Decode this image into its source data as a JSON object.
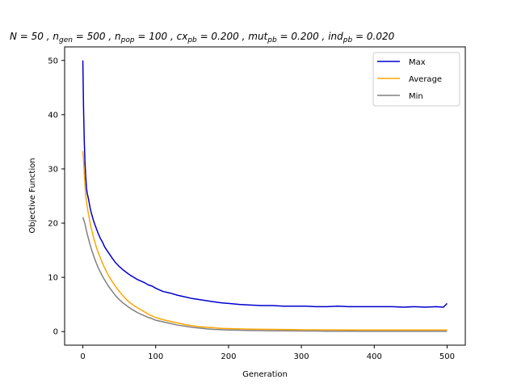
{
  "chart_data": {
    "type": "line",
    "title": "N = 50 , n_gen = 500 , n_pop = 100 , cx_pb = 0.200 , mut_pb = 0.200 , ind_pb = 0.020",
    "title_parts": {
      "n": "N = 50",
      "ngen_base": "n",
      "ngen_sub": "gen",
      "ngen_val": " = 500",
      "npop_base": "n",
      "npop_sub": "pop",
      "npop_val": " = 100",
      "cx_base": "cx",
      "cx_sub": "pb",
      "cx_val": " = 0.200",
      "mut_base": "mut",
      "mut_sub": "pb",
      "mut_val": " = 0.200",
      "ind_base": "ind",
      "ind_sub": "pb",
      "ind_val": " = 0.020",
      "sep": " , "
    },
    "xlabel": "Generation",
    "ylabel": "Objective Function",
    "xlim": [
      -25,
      525
    ],
    "ylim": [
      -2.5,
      52.5
    ],
    "xticks": [
      0,
      100,
      200,
      300,
      400,
      500
    ],
    "yticks": [
      0,
      10,
      20,
      30,
      40,
      50
    ],
    "legend_position": "top-right",
    "grid": false,
    "series": [
      {
        "name": "Max",
        "color": "#0000cd",
        "x": [
          0,
          1,
          2,
          3,
          4,
          5,
          6,
          8,
          10,
          12,
          15,
          18,
          21,
          24,
          27,
          30,
          35,
          40,
          45,
          50,
          55,
          60,
          65,
          70,
          75,
          80,
          85,
          90,
          95,
          100,
          110,
          120,
          130,
          140,
          150,
          160,
          170,
          180,
          190,
          200,
          215,
          230,
          245,
          260,
          275,
          290,
          305,
          320,
          335,
          350,
          365,
          380,
          395,
          410,
          425,
          440,
          455,
          470,
          485,
          495,
          500
        ],
        "values": [
          50.0,
          41.0,
          35.0,
          31.0,
          28.5,
          26.5,
          25.5,
          24.3,
          22.8,
          21.7,
          20.3,
          19.2,
          18.1,
          17.2,
          16.5,
          15.6,
          14.6,
          13.6,
          12.7,
          12.0,
          11.4,
          10.9,
          10.4,
          10.0,
          9.6,
          9.3,
          9.0,
          8.6,
          8.4,
          8.0,
          7.4,
          7.1,
          6.7,
          6.4,
          6.1,
          5.9,
          5.7,
          5.5,
          5.3,
          5.2,
          5.0,
          4.9,
          4.8,
          4.8,
          4.7,
          4.7,
          4.7,
          4.6,
          4.6,
          4.7,
          4.6,
          4.6,
          4.6,
          4.6,
          4.6,
          4.5,
          4.6,
          4.5,
          4.6,
          4.5,
          5.2
        ]
      },
      {
        "name": "Average",
        "color": "#ffa500",
        "x": [
          0,
          1,
          2,
          3,
          4,
          5,
          6,
          8,
          10,
          12,
          15,
          18,
          21,
          24,
          27,
          30,
          35,
          40,
          45,
          50,
          55,
          60,
          65,
          70,
          75,
          80,
          85,
          90,
          95,
          100,
          110,
          120,
          130,
          140,
          150,
          160,
          170,
          180,
          190,
          200,
          215,
          230,
          245,
          260,
          275,
          290,
          305,
          320,
          335,
          350,
          365,
          380,
          395,
          410,
          425,
          440,
          455,
          470,
          485,
          500
        ],
        "values": [
          33.3,
          31.5,
          29.0,
          27.0,
          25.0,
          24.0,
          23.0,
          21.5,
          20.0,
          18.8,
          17.2,
          15.8,
          14.6,
          13.6,
          12.6,
          11.7,
          10.4,
          9.3,
          8.3,
          7.4,
          6.6,
          5.9,
          5.3,
          4.8,
          4.4,
          4.0,
          3.6,
          3.2,
          2.9,
          2.6,
          2.2,
          1.9,
          1.6,
          1.3,
          1.1,
          0.9,
          0.8,
          0.7,
          0.6,
          0.55,
          0.5,
          0.45,
          0.42,
          0.4,
          0.38,
          0.36,
          0.34,
          0.33,
          0.32,
          0.31,
          0.3,
          0.3,
          0.3,
          0.3,
          0.3,
          0.3,
          0.3,
          0.3,
          0.3,
          0.3
        ]
      },
      {
        "name": "Min",
        "color": "#808080",
        "x": [
          0,
          1,
          2,
          3,
          4,
          5,
          6,
          8,
          10,
          12,
          15,
          18,
          21,
          24,
          27,
          30,
          35,
          40,
          45,
          50,
          55,
          60,
          65,
          70,
          75,
          80,
          85,
          90,
          95,
          100,
          110,
          120,
          130,
          140,
          150,
          160,
          170,
          180,
          190,
          200,
          215,
          230,
          245,
          260,
          275,
          290,
          305,
          320,
          335,
          350,
          365,
          380,
          395,
          410,
          425,
          440,
          455,
          470,
          485,
          500
        ],
        "values": [
          21.1,
          20.7,
          20.3,
          19.8,
          19.2,
          18.6,
          18.0,
          17.0,
          16.0,
          15.1,
          13.9,
          12.8,
          11.8,
          11.0,
          10.2,
          9.5,
          8.4,
          7.5,
          6.6,
          5.9,
          5.3,
          4.8,
          4.3,
          3.9,
          3.5,
          3.2,
          2.9,
          2.6,
          2.4,
          2.1,
          1.8,
          1.5,
          1.2,
          1.0,
          0.8,
          0.65,
          0.5,
          0.4,
          0.35,
          0.3,
          0.25,
          0.2,
          0.18,
          0.15,
          0.14,
          0.12,
          0.1,
          0.1,
          0.08,
          0.08,
          0.07,
          0.06,
          0.06,
          0.05,
          0.05,
          0.05,
          0.05,
          0.05,
          0.05,
          0.05
        ]
      }
    ]
  }
}
